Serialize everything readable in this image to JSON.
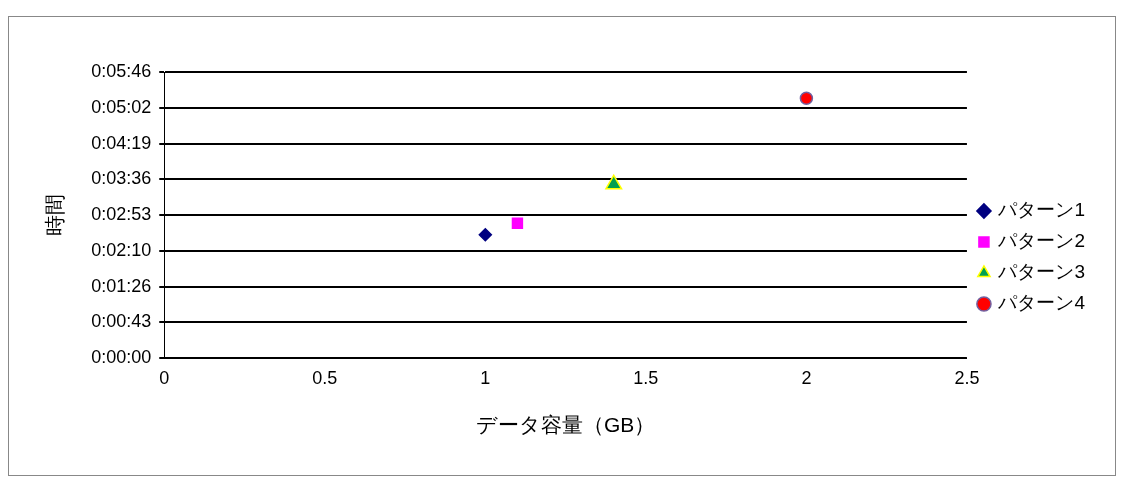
{
  "chart_data": {
    "type": "scatter",
    "xlabel": "データ容量（GB）",
    "ylabel": "時間",
    "xlim": [
      0,
      2.5
    ],
    "xticks": [
      0,
      0.5,
      1,
      1.5,
      2,
      2.5
    ],
    "ylim": [
      0,
      345.6
    ],
    "yticks": [
      {
        "value": 0,
        "label": "0:00:00"
      },
      {
        "value": 43.2,
        "label": "0:00:43"
      },
      {
        "value": 86.4,
        "label": "0:01:26"
      },
      {
        "value": 129.6,
        "label": "0:02:10"
      },
      {
        "value": 172.8,
        "label": "0:02:53"
      },
      {
        "value": 216,
        "label": "0:03:36"
      },
      {
        "value": 259.2,
        "label": "0:04:19"
      },
      {
        "value": 302.4,
        "label": "0:05:02"
      },
      {
        "value": 345.6,
        "label": "0:05:46"
      }
    ],
    "grid": "y",
    "legend": "right",
    "series": [
      {
        "name": "パターン1",
        "color": "#000080",
        "marker": "diamond",
        "x": [
          1
        ],
        "values": [
          149
        ]
      },
      {
        "name": "パターン2",
        "color": "#ff00ff",
        "marker": "square",
        "x": [
          1.1
        ],
        "values": [
          163
        ]
      },
      {
        "name": "パターン3",
        "color": "#00a050",
        "marker": "triangle",
        "x": [
          1.4
        ],
        "values": [
          210
        ]
      },
      {
        "name": "パターン4",
        "color": "#ff0000",
        "marker": "circle",
        "x": [
          2
        ],
        "values": [
          314
        ]
      }
    ]
  }
}
